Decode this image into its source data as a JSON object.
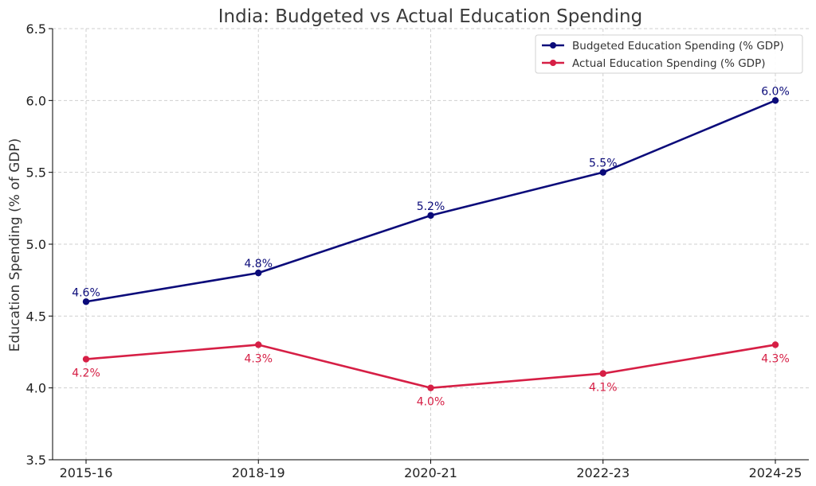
{
  "chart_data": {
    "type": "line",
    "title": "India: Budgeted vs Actual Education Spending",
    "xlabel": "",
    "ylabel": "Education Spending (% of GDP)",
    "categories": [
      "2015-16",
      "2018-19",
      "2020-21",
      "2022-23",
      "2024-25"
    ],
    "ylim": [
      3.5,
      6.5
    ],
    "yticks": [
      "3.5",
      "4.0",
      "4.5",
      "5.0",
      "5.5",
      "6.0",
      "6.5"
    ],
    "grid": true,
    "legend_position": "top-right",
    "series": [
      {
        "name": "Budgeted Education Spending (% GDP)",
        "color": "#0b0b7a",
        "values": [
          4.6,
          4.8,
          5.2,
          5.5,
          6.0
        ],
        "labels": [
          "4.6%",
          "4.8%",
          "5.2%",
          "5.5%",
          "6.0%"
        ],
        "label_side": "above"
      },
      {
        "name": "Actual Education Spending (% GDP)",
        "color": "#d61f45",
        "values": [
          4.2,
          4.3,
          4.0,
          4.1,
          4.3
        ],
        "labels": [
          "4.2%",
          "4.3%",
          "4.0%",
          "4.1%",
          "4.3%"
        ],
        "label_side": "below"
      }
    ]
  }
}
